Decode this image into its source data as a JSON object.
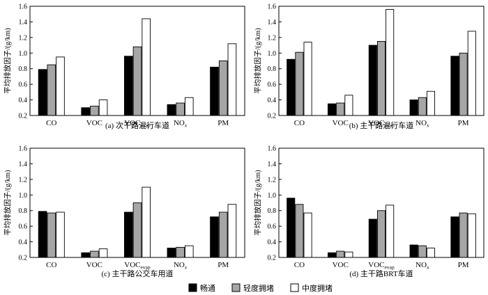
{
  "legend": [
    {
      "label": "畅通",
      "color": "#000000"
    },
    {
      "label": "轻度拥堵",
      "color": "#a6a6a6"
    },
    {
      "label": "中度拥堵",
      "color": "#ffffff"
    }
  ],
  "chart_data": [
    {
      "type": "bar",
      "caption": "(a) 次干路混行车道",
      "ylabel": "平均排放因子/(g/km)",
      "ylim": [
        0.2,
        1.6
      ],
      "yticks": [
        "0.2",
        "0.4",
        "0.6",
        "0.8",
        "1.0",
        "1.2",
        "1.4",
        "1.6"
      ],
      "categories": [
        {
          "main": "CO",
          "sub": ""
        },
        {
          "main": "VOC",
          "sub": ""
        },
        {
          "main": "VOC",
          "sub": "evap"
        },
        {
          "main": "NO",
          "sub": "x"
        },
        {
          "main": "PM",
          "sub": ""
        }
      ],
      "series": [
        {
          "name": "畅通",
          "values": [
            0.79,
            0.3,
            0.96,
            0.34,
            0.82
          ]
        },
        {
          "name": "轻度拥堵",
          "values": [
            0.85,
            0.32,
            1.08,
            0.36,
            0.9
          ]
        },
        {
          "name": "中度拥堵",
          "values": [
            0.95,
            0.4,
            1.44,
            0.43,
            1.12
          ]
        }
      ]
    },
    {
      "type": "bar",
      "caption": "(b) 主干路混行车道",
      "ylabel": "平均排放因子/(g/km)",
      "ylim": [
        0.2,
        1.6
      ],
      "yticks": [
        "0.2",
        "0.4",
        "0.6",
        "0.8",
        "1.0",
        "1.2",
        "1.4",
        "1.6"
      ],
      "categories": [
        {
          "main": "CO",
          "sub": ""
        },
        {
          "main": "VOC",
          "sub": ""
        },
        {
          "main": "VOC",
          "sub": "evap"
        },
        {
          "main": "NO",
          "sub": "x"
        },
        {
          "main": "PM",
          "sub": ""
        }
      ],
      "series": [
        {
          "name": "畅通",
          "values": [
            0.92,
            0.35,
            1.1,
            0.4,
            0.96
          ]
        },
        {
          "name": "轻度拥堵",
          "values": [
            1.01,
            0.36,
            1.15,
            0.43,
            1.0
          ]
        },
        {
          "name": "中度拥堵",
          "values": [
            1.14,
            0.46,
            1.56,
            0.51,
            1.28
          ]
        }
      ]
    },
    {
      "type": "bar",
      "caption": "(c) 主干路公交车用道",
      "ylabel": "平均排放因子/(g/km)",
      "ylim": [
        0.2,
        1.6
      ],
      "yticks": [
        "0.2",
        "0.4",
        "0.6",
        "0.8",
        "1.0",
        "1.2",
        "1.4",
        "1.6"
      ],
      "categories": [
        {
          "main": "CO",
          "sub": ""
        },
        {
          "main": "VOC",
          "sub": ""
        },
        {
          "main": "VOC",
          "sub": "evap"
        },
        {
          "main": "NO",
          "sub": "x"
        },
        {
          "main": "PM",
          "sub": ""
        }
      ],
      "series": [
        {
          "name": "畅通",
          "values": [
            0.79,
            0.26,
            0.78,
            0.32,
            0.72
          ]
        },
        {
          "name": "轻度拥堵",
          "values": [
            0.77,
            0.28,
            0.9,
            0.33,
            0.78
          ]
        },
        {
          "name": "中度拥堵",
          "values": [
            0.78,
            0.31,
            1.1,
            0.35,
            0.88
          ]
        }
      ]
    },
    {
      "type": "bar",
      "caption": "(d) 主干路BRT车道",
      "ylabel": "平均排放因子/(g/km)",
      "ylim": [
        0.2,
        1.6
      ],
      "yticks": [
        "0.2",
        "0.4",
        "0.6",
        "0.8",
        "1.0",
        "1.2",
        "1.4",
        "1.6"
      ],
      "categories": [
        {
          "main": "CO",
          "sub": ""
        },
        {
          "main": "VOC",
          "sub": ""
        },
        {
          "main": "VOC",
          "sub": "evap"
        },
        {
          "main": "NO",
          "sub": "x"
        },
        {
          "main": "PM",
          "sub": ""
        }
      ],
      "series": [
        {
          "name": "畅通",
          "values": [
            0.96,
            0.26,
            0.69,
            0.36,
            0.72
          ]
        },
        {
          "name": "轻度拥堵",
          "values": [
            0.88,
            0.28,
            0.8,
            0.35,
            0.77
          ]
        },
        {
          "name": "中度拥堵",
          "values": [
            0.77,
            0.27,
            0.87,
            0.32,
            0.76
          ]
        }
      ]
    }
  ]
}
